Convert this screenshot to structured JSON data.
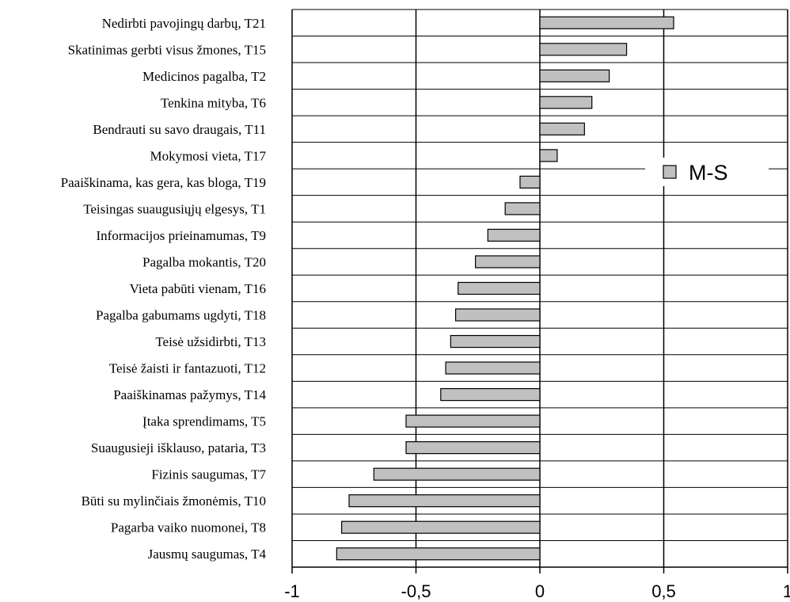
{
  "chart_data": {
    "type": "bar",
    "orientation": "horizontal",
    "categories": [
      "Nedirbti pavojingų darbų, T21",
      "Skatinimas gerbti visus žmones, T15",
      "Medicinos pagalba, T2",
      "Tenkina mityba, T6",
      "Bendrauti su savo draugais, T11",
      "Mokymosi vieta, T17",
      "Paaiškinama, kas gera, kas bloga, T19",
      "Teisingas suaugusiųjų elgesys, T1",
      "Informacijos prieinamumas, T9",
      "Pagalba mokantis, T20",
      "Vieta pabūti vienam, T16",
      "Pagalba gabumams ugdyti, T18",
      "Teisė užsidirbti, T13",
      "Teisė žaisti ir fantazuoti, T12",
      "Paaiškinamas pažymys, T14",
      "Įtaka sprendimams, T5",
      "Suaugusieji išklauso, pataria, T3",
      "Fizinis saugumas, T7",
      "Būti su mylinčiais žmonėmis, T10",
      "Pagarba vaiko nuomonei, T8",
      "Jausmų saugumas, T4"
    ],
    "series": [
      {
        "name": "M-S",
        "values": [
          0.54,
          0.35,
          0.28,
          0.21,
          0.18,
          0.07,
          -0.08,
          -0.14,
          -0.21,
          -0.26,
          -0.33,
          -0.34,
          -0.36,
          -0.38,
          -0.4,
          -0.54,
          -0.54,
          -0.67,
          -0.77,
          -0.8,
          -0.82
        ]
      }
    ],
    "xlim": [
      -1,
      1
    ],
    "xticks": [
      -1,
      -0.5,
      0,
      0.5,
      1
    ],
    "xtick_labels": [
      "-1",
      "-0,5",
      "0",
      "0,5",
      "1"
    ],
    "grid": true,
    "legend": "right",
    "colors": {
      "bar_fill": "#c0c0c0",
      "bar_stroke": "#000000",
      "grid": "#000000"
    }
  }
}
